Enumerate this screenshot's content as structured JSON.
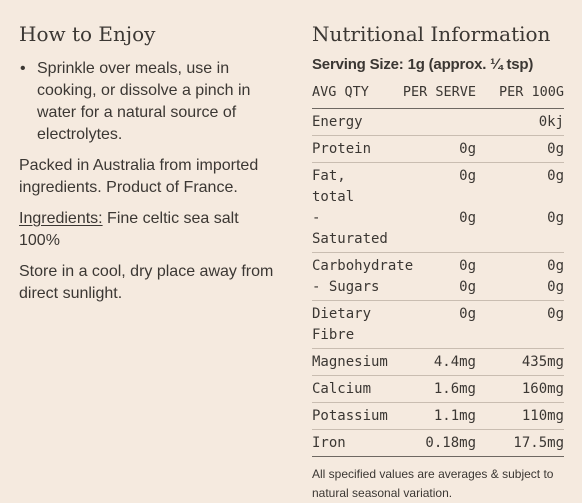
{
  "how_to_enjoy": {
    "title": "How to Enjoy",
    "bullet_symbol": "•",
    "bullet_text": "Sprinkle over meals, use in cooking, or dissolve a pinch in water for a natural source of electrolytes.",
    "packed_text": "Packed in Australia from imported ingredients. Product of France.",
    "ingredients_label": "Ingredients:",
    "ingredients_value": " Fine celtic sea salt 100%",
    "storage_text": "Store in a cool, dry place away from direct sunlight."
  },
  "nutrition": {
    "title": "Nutritional Information",
    "serving_size": "Serving Size: 1g (approx. ¼ tsp)",
    "headers": [
      "AVG QTY",
      "PER SERVE",
      "PER 100G"
    ],
    "groups": [
      [
        {
          "name": "Energy",
          "serve": "",
          "per100": "0kj"
        }
      ],
      [
        {
          "name": "Protein",
          "serve": "0g",
          "per100": "0g"
        }
      ],
      [
        {
          "name": "Fat, total",
          "serve": "0g",
          "per100": "0g"
        },
        {
          "name": "- Saturated",
          "serve": "0g",
          "per100": "0g"
        }
      ],
      [
        {
          "name": "Carbohydrate",
          "serve": "0g",
          "per100": "0g"
        },
        {
          "name": "- Sugars",
          "serve": "0g",
          "per100": "0g"
        }
      ],
      [
        {
          "name": "Dietary Fibre",
          "serve": "0g",
          "per100": "0g"
        }
      ],
      [
        {
          "name": "Magnesium",
          "serve": "4.4mg",
          "per100": "435mg"
        }
      ],
      [
        {
          "name": "Calcium",
          "serve": "1.6mg",
          "per100": "160mg"
        }
      ],
      [
        {
          "name": "Potassium",
          "serve": "1.1mg",
          "per100": "110mg"
        }
      ],
      [
        {
          "name": "Iron",
          "serve": "0.18mg",
          "per100": "17.5mg"
        }
      ]
    ],
    "footnote": "All specified values are averages & subject to natural seasonal variation."
  }
}
